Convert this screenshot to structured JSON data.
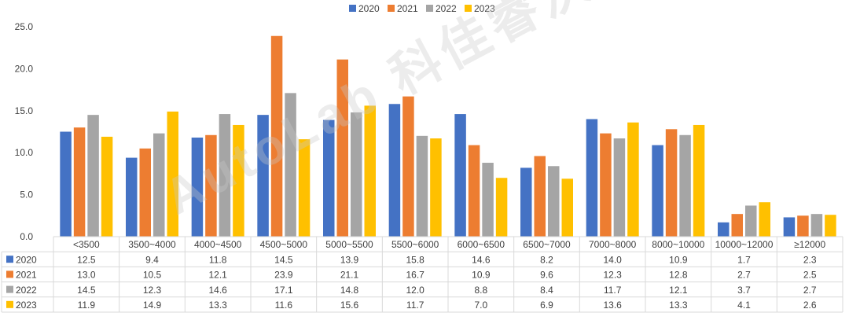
{
  "chart_data": {
    "type": "bar",
    "title": "",
    "xlabel": "",
    "ylabel": "",
    "ylim": [
      0,
      25
    ],
    "yticks": [
      "0.0",
      "5.0",
      "10.0",
      "15.0",
      "20.0",
      "25.0"
    ],
    "grid": false,
    "legend_position": "top-center",
    "show_data_table": true,
    "categories": [
      "<3500",
      "3500~4000",
      "4000~4500",
      "4500~5000",
      "5000~5500",
      "5500~6000",
      "6000~6500",
      "6500~7000",
      "7000~8000",
      "8000~10000",
      "10000~12000",
      "≥12000"
    ],
    "series": [
      {
        "name": "2020",
        "color": "#4472C4",
        "values": [
          12.5,
          9.4,
          11.8,
          14.5,
          13.9,
          15.8,
          14.6,
          8.2,
          14.0,
          10.9,
          1.7,
          2.3
        ]
      },
      {
        "name": "2021",
        "color": "#ED7D31",
        "values": [
          13.0,
          10.5,
          12.1,
          23.9,
          21.1,
          16.7,
          10.9,
          9.6,
          12.3,
          12.8,
          2.7,
          2.5
        ]
      },
      {
        "name": "2022",
        "color": "#A5A5A5",
        "values": [
          14.5,
          12.3,
          14.6,
          17.1,
          14.8,
          12.0,
          8.8,
          8.4,
          11.7,
          12.1,
          3.7,
          2.7
        ]
      },
      {
        "name": "2023",
        "color": "#FFC000",
        "values": [
          11.9,
          14.9,
          13.3,
          11.6,
          15.6,
          11.7,
          7.0,
          6.9,
          13.6,
          13.3,
          4.1,
          2.6
        ]
      }
    ]
  },
  "watermark": "AutoLab 科佳睿沃"
}
